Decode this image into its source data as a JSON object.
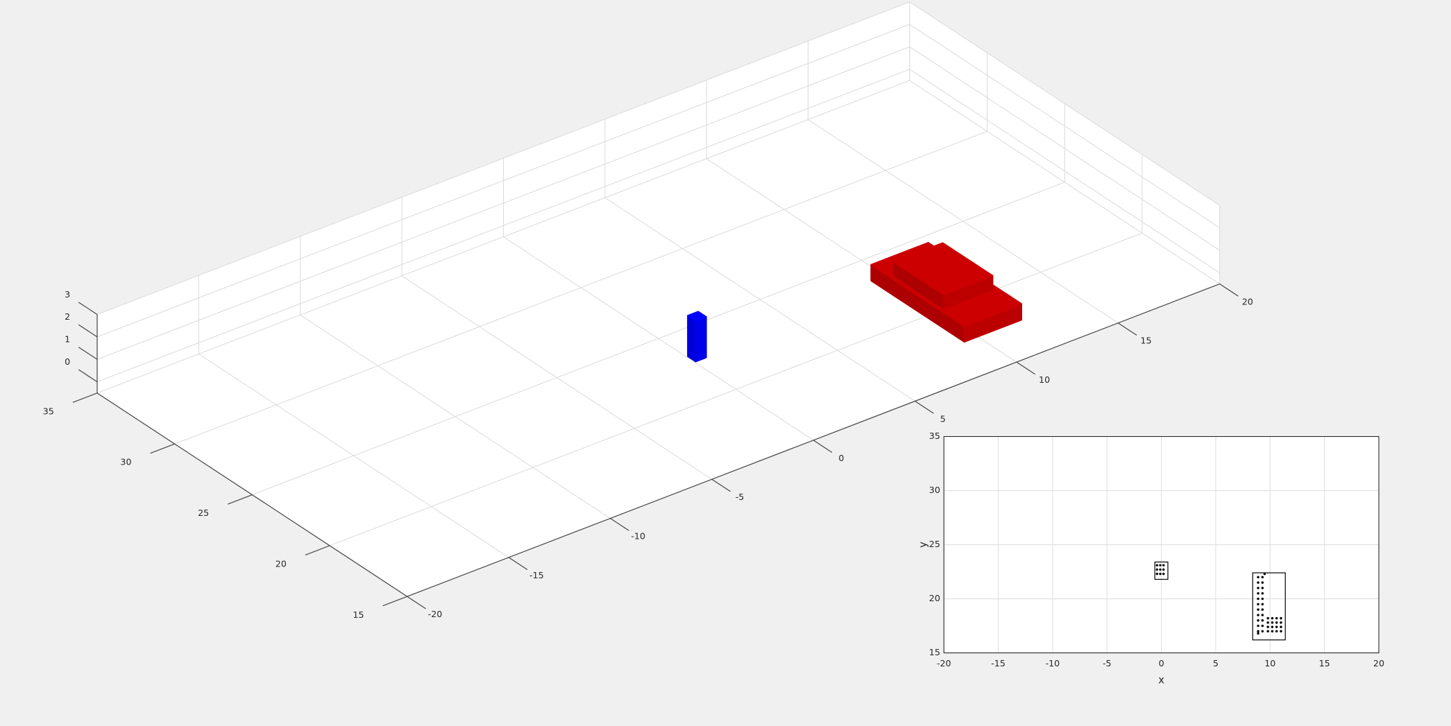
{
  "chart_data": [
    {
      "type": "scene3d",
      "xlim": [
        -20,
        20
      ],
      "ylim": [
        15,
        35
      ],
      "zlim": [
        -0.5,
        3
      ],
      "xticks": [
        -20,
        -15,
        -10,
        -5,
        0,
        5,
        10,
        15,
        20
      ],
      "yticks": [
        15,
        20,
        25,
        30,
        35
      ],
      "zticks": [
        0,
        1,
        2,
        3
      ],
      "grid": true,
      "objects": [
        {
          "color": "#cc0000",
          "x": [
            8.5,
            11.3
          ],
          "y": [
            16.4,
            22.4
          ],
          "z": [
            0.3,
            1.0
          ]
        },
        {
          "color": "#cc0000",
          "x": [
            8.7,
            11.1
          ],
          "y": [
            18.0,
            21.2
          ],
          "z": [
            1.0,
            1.6
          ]
        },
        {
          "color": "#0000ff",
          "x": [
            -0.45,
            0.05
          ],
          "y": [
            22.0,
            22.5
          ],
          "z": [
            0,
            1.8
          ]
        }
      ]
    },
    {
      "type": "scatter",
      "xlim": [
        -20,
        20
      ],
      "ylim": [
        15,
        35
      ],
      "xticks": [
        -20,
        -15,
        -10,
        -5,
        0,
        5,
        10,
        15,
        20
      ],
      "yticks": [
        15,
        20,
        25,
        30,
        35
      ],
      "xlabel": "x",
      "ylabel": "y",
      "grid": true,
      "series": [
        {
          "color": "#000000",
          "x": [
            -0.4,
            -0.1,
            0.2,
            -0.4,
            -0.1,
            0.2,
            -0.4,
            -0.1,
            0.2
          ],
          "y": [
            22.3,
            22.3,
            22.3,
            22.7,
            22.7,
            22.7,
            23.1,
            23.1,
            23.1
          ]
        },
        {
          "color": "#000000",
          "x": [
            8.9,
            8.9,
            8.9,
            8.9,
            8.9,
            8.9,
            8.9,
            8.9,
            8.9,
            8.9,
            8.9,
            9.3,
            9.3,
            9.3,
            9.3,
            9.3,
            9.3,
            9.3,
            9.3,
            9.3,
            9.3,
            9.3,
            9.8,
            9.8,
            9.8,
            9.8,
            10.2,
            10.2,
            10.2,
            10.2,
            10.6,
            10.6,
            10.6,
            10.6,
            11.0,
            11.0,
            11.0,
            11.0,
            9.5,
            8.9
          ],
          "y": [
            17,
            17.5,
            18,
            18.5,
            19,
            19.5,
            20,
            20.5,
            21,
            21.5,
            22,
            17,
            17.5,
            18,
            18.5,
            19,
            19.5,
            20,
            20.5,
            21,
            21.5,
            22,
            17,
            17.4,
            17.8,
            18.2,
            17,
            17.4,
            17.8,
            18.2,
            17,
            17.4,
            17.8,
            18.2,
            17,
            17.4,
            17.8,
            18.2,
            22.3,
            16.8
          ]
        }
      ],
      "boxes": [
        {
          "x": [
            -0.6,
            0.6
          ],
          "y": [
            21.8,
            23.4
          ]
        },
        {
          "x": [
            8.4,
            11.4
          ],
          "y": [
            16.2,
            22.4
          ]
        }
      ]
    }
  ]
}
